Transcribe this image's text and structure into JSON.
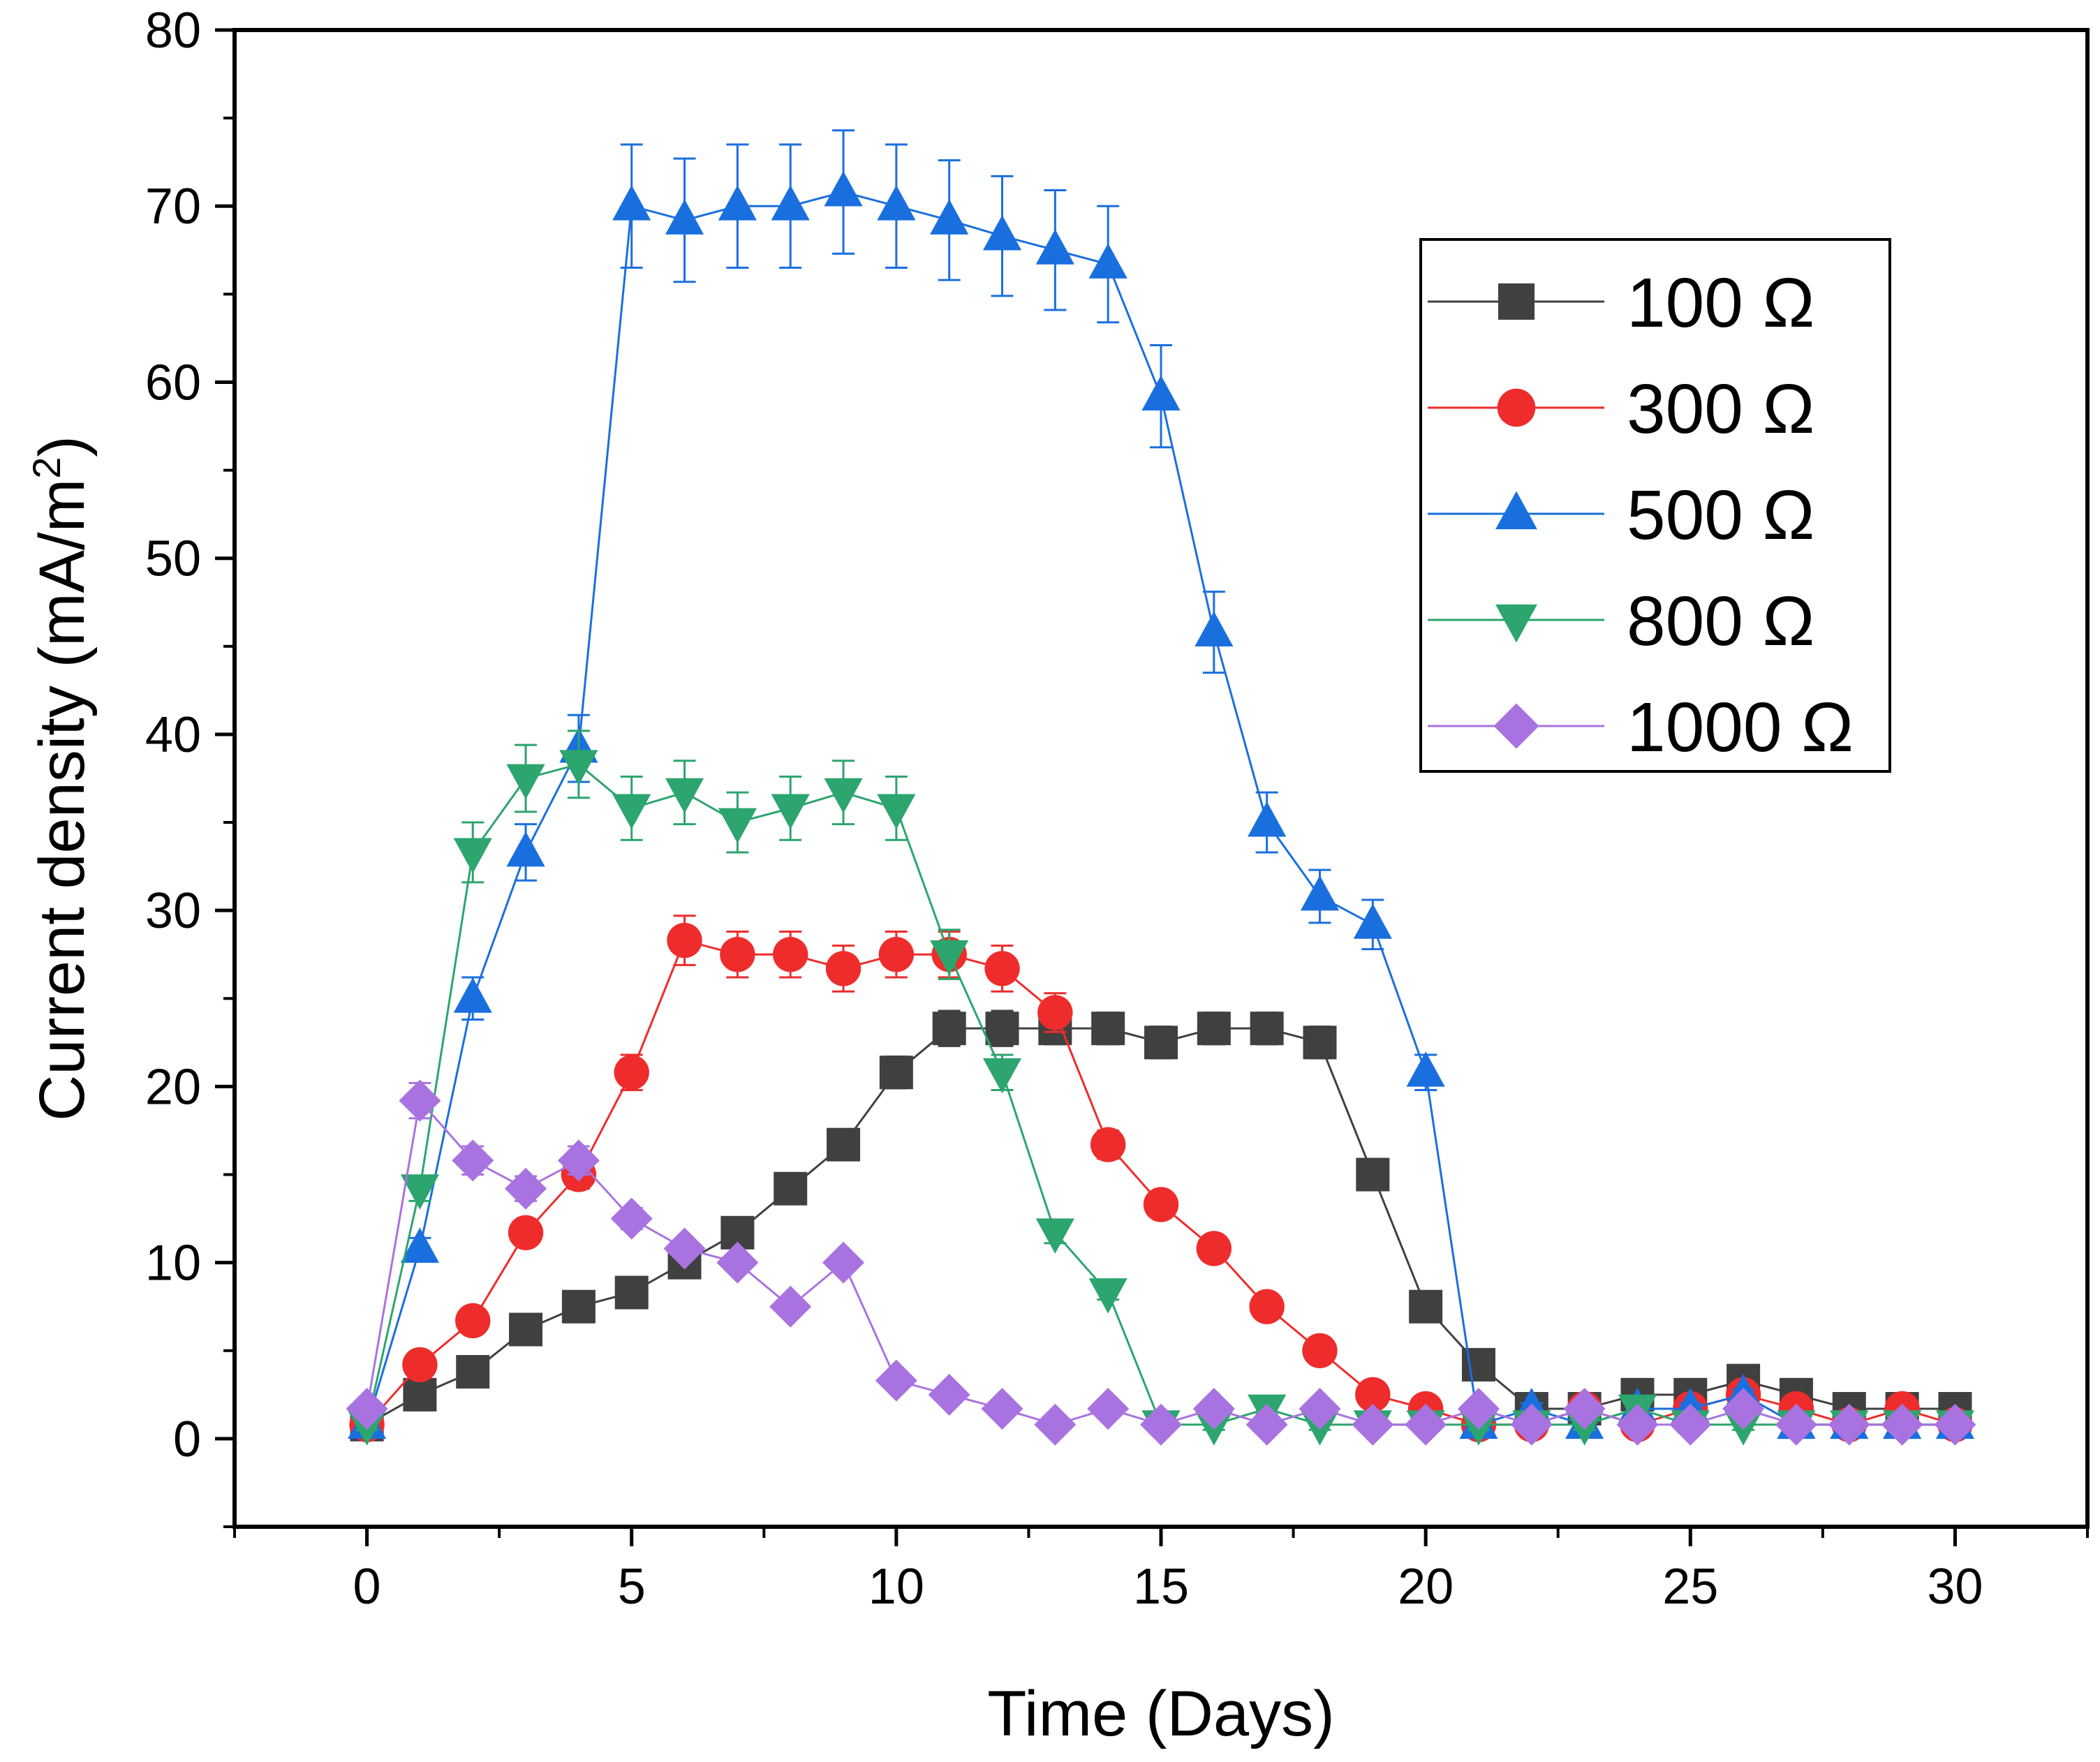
{
  "chart_data": {
    "type": "line",
    "xlabel": "Time (Days)",
    "ylabel": "Current density (mA/m",
    "ylabel_sup": "2",
    "ylabel_close": ")",
    "xlim": [
      -2.5,
      32.5
    ],
    "ylim": [
      -5,
      80
    ],
    "xticks": [
      0,
      5,
      10,
      15,
      20,
      25,
      30
    ],
    "yticks": [
      0,
      10,
      20,
      30,
      40,
      50,
      60,
      70,
      80
    ],
    "x": [
      0,
      1,
      2,
      3,
      4,
      5,
      6,
      7,
      8,
      9,
      10,
      11,
      12,
      13,
      14,
      15,
      16,
      17,
      18,
      19,
      20,
      21,
      22,
      23,
      24,
      25,
      26,
      27,
      28,
      29,
      30
    ],
    "legend_position": "top-right",
    "series": [
      {
        "name": "100 Ω",
        "color": "#404040",
        "marker": "square",
        "values": [
          0.8,
          2.5,
          3.8,
          6.2,
          7.5,
          8.3,
          10.0,
          11.7,
          14.2,
          16.7,
          20.8,
          23.3,
          23.3,
          23.3,
          23.3,
          22.5,
          23.3,
          23.3,
          22.5,
          15.0,
          7.5,
          4.2,
          1.7,
          1.7,
          2.5,
          2.5,
          3.3,
          2.5,
          1.7,
          1.7,
          1.7
        ],
        "errors": [
          0.3,
          0.3,
          0.4,
          0.5,
          0.5,
          0.5,
          0.6,
          0.7,
          0.6,
          0.7,
          0.9,
          1.0,
          1.0,
          0.9,
          0.9,
          0.9,
          0.9,
          0.9,
          0.9,
          0.7,
          0.6,
          0.4,
          0.3,
          0.3,
          0.4,
          0.4,
          0.4,
          0.3,
          0.3,
          0.3,
          0.3
        ]
      },
      {
        "name": "300 Ω",
        "color": "#ee2c2c",
        "marker": "circle",
        "values": [
          0.8,
          4.2,
          6.7,
          11.7,
          15.0,
          20.8,
          28.3,
          27.5,
          27.5,
          26.7,
          27.5,
          27.5,
          26.7,
          24.2,
          16.7,
          13.3,
          10.8,
          7.5,
          5.0,
          2.5,
          1.7,
          0.8,
          0.8,
          1.7,
          0.8,
          1.7,
          2.5,
          1.7,
          0.8,
          1.7,
          0.8
        ],
        "errors": [
          0.3,
          0.4,
          0.5,
          0.6,
          0.8,
          1.0,
          1.4,
          1.3,
          1.3,
          1.3,
          1.3,
          1.3,
          1.3,
          1.1,
          0.8,
          0.7,
          0.6,
          0.5,
          0.4,
          0.3,
          0.3,
          0.3,
          0.3,
          0.3,
          0.3,
          0.3,
          0.3,
          0.3,
          0.3,
          0.3,
          0.3
        ]
      },
      {
        "name": "500 Ω",
        "color": "#1a6fdf",
        "marker": "triangle-up",
        "values": [
          0.8,
          10.8,
          25.0,
          33.3,
          39.2,
          70.0,
          69.2,
          70.0,
          70.0,
          70.8,
          70.0,
          69.2,
          68.3,
          67.5,
          66.7,
          59.2,
          45.8,
          35.0,
          30.8,
          29.2,
          20.8,
          0.8,
          1.7,
          0.8,
          1.7,
          1.7,
          2.5,
          0.8,
          0.8,
          0.8,
          0.8
        ],
        "errors": [
          0.3,
          0.6,
          1.2,
          1.6,
          1.9,
          3.5,
          3.5,
          3.5,
          3.5,
          3.5,
          3.5,
          3.4,
          3.4,
          3.4,
          3.3,
          2.9,
          2.3,
          1.7,
          1.5,
          1.4,
          1.0,
          0.3,
          0.3,
          0.3,
          0.3,
          0.3,
          0.3,
          0.3,
          0.3,
          0.3,
          0.3
        ]
      },
      {
        "name": "800 Ω",
        "color": "#2ca56e",
        "marker": "triangle-down",
        "values": [
          0.8,
          14.2,
          33.3,
          37.5,
          38.3,
          35.8,
          36.7,
          35.0,
          35.8,
          36.7,
          35.8,
          27.5,
          20.8,
          11.7,
          8.3,
          0.8,
          0.8,
          1.7,
          0.8,
          0.8,
          0.8,
          0.8,
          0.8,
          0.8,
          1.7,
          0.8,
          0.8,
          0.8,
          0.8,
          0.8,
          0.8
        ],
        "errors": [
          0.3,
          0.7,
          1.7,
          1.9,
          1.9,
          1.8,
          1.8,
          1.7,
          1.8,
          1.8,
          1.8,
          1.4,
          1.0,
          0.6,
          0.4,
          0.3,
          0.3,
          0.3,
          0.3,
          0.3,
          0.3,
          0.3,
          0.3,
          0.3,
          0.3,
          0.3,
          0.3,
          0.3,
          0.3,
          0.3,
          0.3
        ]
      },
      {
        "name": "1000 Ω",
        "color": "#a873e0",
        "marker": "diamond",
        "values": [
          1.7,
          19.2,
          15.8,
          14.2,
          15.8,
          12.5,
          10.8,
          10.0,
          7.5,
          10.0,
          3.3,
          2.5,
          1.7,
          0.8,
          1.7,
          0.8,
          1.7,
          0.8,
          1.7,
          0.8,
          0.8,
          1.7,
          0.8,
          1.7,
          0.8,
          0.8,
          1.7,
          0.8,
          0.8,
          0.8,
          0.8
        ],
        "errors": [
          0.3,
          1.0,
          0.8,
          0.7,
          0.8,
          0.6,
          0.5,
          0.5,
          0.4,
          0.5,
          0.3,
          0.3,
          0.3,
          0.3,
          0.3,
          0.3,
          0.3,
          0.3,
          0.3,
          0.3,
          0.3,
          0.3,
          0.3,
          0.3,
          0.3,
          0.3,
          0.3,
          0.3,
          0.3,
          0.3,
          0.3
        ]
      }
    ]
  }
}
